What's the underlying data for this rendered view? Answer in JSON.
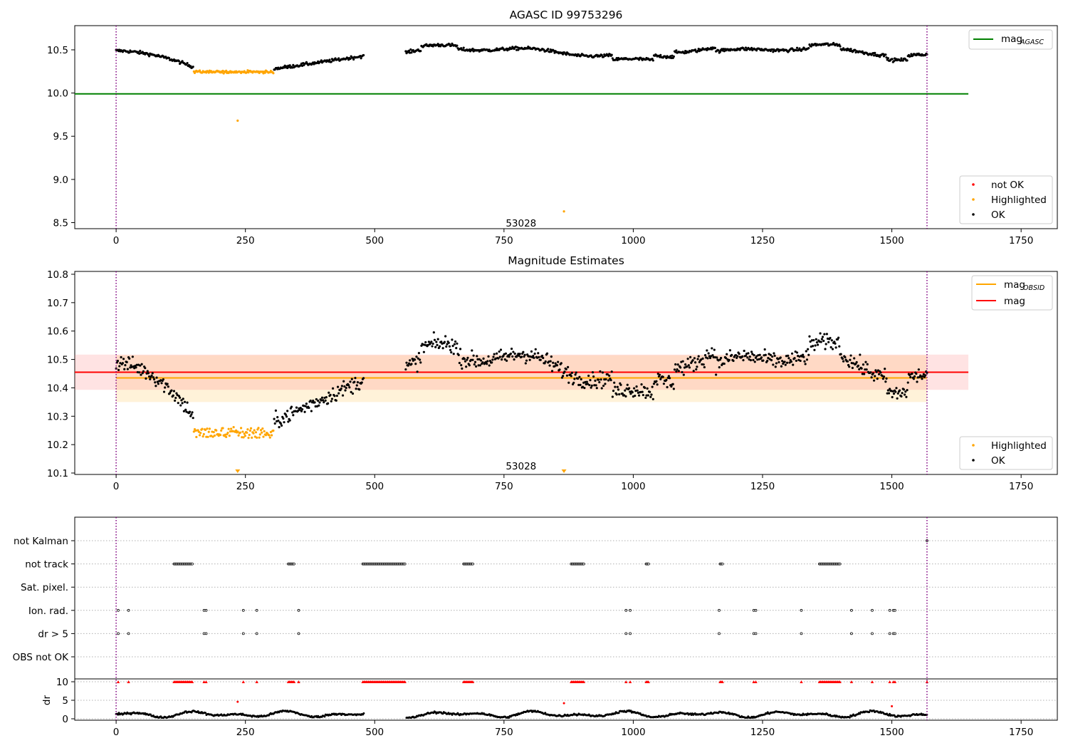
{
  "figure": {
    "title": "AGASC ID 99753296"
  },
  "chart_data": [
    {
      "type": "scatter",
      "title": "AGASC ID 99753296",
      "xlabel": "",
      "ylabel": "",
      "xlim": [
        -80,
        1820
      ],
      "ylim": [
        8.43,
        10.78
      ],
      "xticks": [
        0,
        250,
        500,
        750,
        1000,
        1250,
        1500,
        1750
      ],
      "yticks": [
        8.5,
        9.0,
        9.5,
        10.0,
        10.5
      ],
      "xtick_labels": [
        "0",
        "250",
        "500",
        "750",
        "1000",
        "1250",
        "1500",
        "1750"
      ],
      "ytick_labels": [
        "8.5",
        "9.0",
        "9.5",
        "10.0",
        "10.5"
      ],
      "obs_boundaries": [
        0,
        1568
      ],
      "obsid_label": {
        "text": "53028",
        "x": 783,
        "y": 8.48
      },
      "lines": [
        {
          "name": "mag_AGASC",
          "legend_main": "mag",
          "legend_sub": "AGASC",
          "y": 9.99,
          "x": [
            -80,
            1648
          ],
          "color": "#008000"
        }
      ],
      "legend_lines_location": "upper right",
      "legend_points": [
        {
          "name": "not OK",
          "color": "#ff0000"
        },
        {
          "name": "Highlighted",
          "color": "#ffa500"
        },
        {
          "name": "OK",
          "color": "#000000"
        }
      ],
      "legend_points_location": "lower right",
      "series_segments": [
        {
          "name": "OK",
          "x": [
            0,
            150
          ],
          "y": [
            10.5,
            10.29
          ],
          "color": "#000000"
        },
        {
          "name": "Highlighted",
          "x": [
            150,
            305
          ],
          "y": [
            10.26,
            10.25
          ],
          "color": "#ffa500"
        },
        {
          "name": "OK",
          "x": [
            305,
            480
          ],
          "y": [
            10.3,
            10.42
          ],
          "color": "#000000"
        },
        {
          "name": "OK",
          "x": [
            560,
            1568
          ],
          "y": [
            10.48,
            10.48
          ],
          "color": "#000000"
        }
      ],
      "outliers": [
        {
          "x": 235,
          "y": 9.68,
          "color": "#ffa500"
        },
        {
          "x": 866,
          "y": 8.63,
          "color": "#ffa500"
        }
      ]
    },
    {
      "type": "scatter",
      "title": "Magnitude Estimates",
      "xlabel": "",
      "ylabel": "",
      "xlim": [
        -80,
        1820
      ],
      "ylim": [
        10.095,
        10.81
      ],
      "xticks": [
        0,
        250,
        500,
        750,
        1000,
        1250,
        1500,
        1750
      ],
      "yticks": [
        10.1,
        10.2,
        10.3,
        10.4,
        10.5,
        10.6,
        10.7,
        10.8
      ],
      "xtick_labels": [
        "0",
        "250",
        "500",
        "750",
        "1000",
        "1250",
        "1500",
        "1750"
      ],
      "ytick_labels": [
        "10.1",
        "10.2",
        "10.3",
        "10.4",
        "10.5",
        "10.6",
        "10.7",
        "10.8"
      ],
      "obs_boundaries": [
        0,
        1568
      ],
      "obsid_label": {
        "text": "53028",
        "x": 783,
        "y": 10.12
      },
      "bands": [
        {
          "name": "mag_OBSID band",
          "y": [
            10.35,
            10.515
          ],
          "x": [
            0,
            1568
          ],
          "color": "#ffa500",
          "opacity": 0.15
        },
        {
          "name": "mag band",
          "y": [
            10.393,
            10.517
          ],
          "x": [
            -80,
            1648
          ],
          "color": "#ff7f7f",
          "opacity": 0.22
        }
      ],
      "lines": [
        {
          "name": "mag_OBSID",
          "legend_main": "mag",
          "legend_sub": "OBSID",
          "y": 10.435,
          "x": [
            0,
            1568
          ],
          "color": "#ffa500"
        },
        {
          "name": "mag",
          "legend_main": "mag",
          "legend_sub": "",
          "y": 10.455,
          "x": [
            -80,
            1648
          ],
          "color": "#ff0000"
        }
      ],
      "legend_lines_location": "upper right",
      "legend_points": [
        {
          "name": "Highlighted",
          "color": "#ffa500"
        },
        {
          "name": "OK",
          "color": "#000000"
        }
      ],
      "legend_points_location": "lower right",
      "offscale_markers": [
        {
          "x": 235,
          "color": "#ffa500"
        },
        {
          "x": 866,
          "color": "#ffa500"
        }
      ]
    },
    {
      "type": "scatter",
      "title": "",
      "xlabel": "",
      "ylabel": "",
      "xlim": [
        -80,
        1820
      ],
      "xticks": [
        0,
        250,
        500,
        750,
        1000,
        1250,
        1500,
        1750
      ],
      "xtick_labels": [
        "0",
        "250",
        "500",
        "750",
        "1000",
        "1250",
        "1500",
        "1750"
      ],
      "obs_boundaries": [
        0,
        1568
      ],
      "flag_rows": [
        "not Kalman",
        "not track",
        "Sat. pixel.",
        "Ion. rad.",
        "dr > 5",
        "OBS not OK"
      ],
      "flag_events": {
        "not Kalman": [
          1568
        ],
        "not track": [
          [
            112,
            148
          ],
          [
            333,
            345
          ],
          [
            477,
            560
          ],
          [
            672,
            690
          ],
          [
            880,
            906
          ],
          [
            1025,
            1030
          ],
          [
            1168,
            1174
          ],
          [
            1360,
            1400
          ]
        ],
        "Sat. pixel.": [],
        "Ion. rad.": [
          4,
          24,
          170,
          174,
          246,
          272,
          353,
          986,
          994,
          1166,
          1233,
          1237,
          1325,
          1422,
          1462,
          1496,
          1503,
          1506
        ],
        "dr > 5": [
          4,
          24,
          170,
          174,
          246,
          272,
          353,
          986,
          994,
          1166,
          1233,
          1237,
          1325,
          1422,
          1462,
          1496,
          1503,
          1506
        ],
        "OBS not OK": []
      },
      "dr_subplot": {
        "ylabel": "dr",
        "ylim": [
          0,
          10
        ],
        "yticks": [
          0,
          5,
          10
        ],
        "ytick_labels": [
          "0",
          "5",
          "10"
        ],
        "capped_value": 10,
        "capped_color": "#ff0000",
        "capped_ranges": [
          [
            112,
            148
          ],
          [
            333,
            345
          ],
          [
            477,
            560
          ],
          [
            672,
            690
          ],
          [
            880,
            906
          ],
          [
            1025,
            1030
          ],
          [
            1168,
            1174
          ],
          [
            1360,
            1400
          ]
        ],
        "capped_singles": [
          4,
          24,
          170,
          174,
          246,
          272,
          353,
          986,
          994,
          1233,
          1237,
          1325,
          1422,
          1462,
          1496,
          1503,
          1506,
          1568
        ],
        "extra_red": [
          {
            "x": 235,
            "y": 4.6
          },
          {
            "x": 866,
            "y": 4.2
          },
          {
            "x": 1500,
            "y": 3.4
          }
        ],
        "typical_range": [
          0.3,
          2.3
        ]
      }
    }
  ]
}
